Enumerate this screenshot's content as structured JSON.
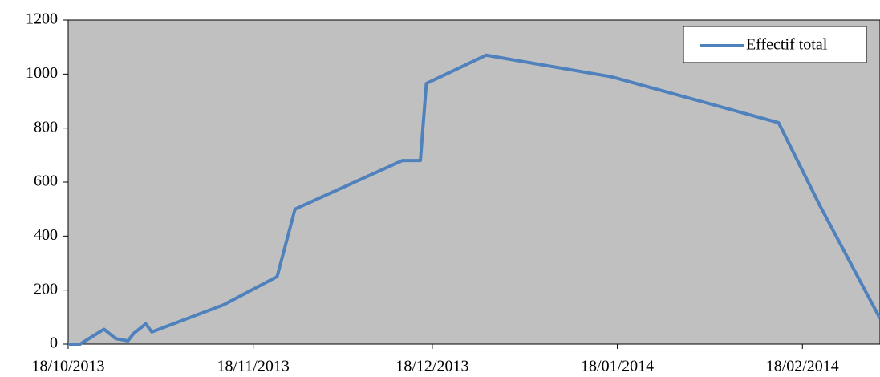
{
  "chart_data": {
    "type": "line",
    "x": [
      "2013-10-18",
      "2013-10-20",
      "2013-10-24",
      "2013-10-26",
      "2013-10-28",
      "2013-10-29",
      "2013-10-31",
      "2013-11-01",
      "2013-11-13",
      "2013-11-22",
      "2013-11-25",
      "2013-12-13",
      "2013-12-16",
      "2013-12-17",
      "2013-12-27",
      "2014-01-17",
      "2014-02-14",
      "2014-02-21",
      "2014-03-03"
    ],
    "series": [
      {
        "name": "Effectif total",
        "color": "#4f81bd",
        "values": [
          0,
          0,
          55,
          20,
          12,
          40,
          75,
          45,
          145,
          250,
          500,
          680,
          680,
          965,
          1070,
          990,
          820,
          510,
          95
        ]
      }
    ],
    "xlim": [
      "2013-10-18",
      "2014-03-03"
    ],
    "xticks": [
      {
        "value": "2013-10-18",
        "label": "18/10/2013"
      },
      {
        "value": "2013-11-18",
        "label": "18/11/2013"
      },
      {
        "value": "2013-12-18",
        "label": "18/12/2013"
      },
      {
        "value": "2014-01-18",
        "label": "18/01/2014"
      },
      {
        "value": "2014-02-18",
        "label": "18/02/2014"
      }
    ],
    "ylim": [
      0,
      1200
    ],
    "yticks": [
      0,
      200,
      400,
      600,
      800,
      1000,
      1200
    ],
    "plot_background": "#c0c0c0",
    "legend": "top-right"
  }
}
